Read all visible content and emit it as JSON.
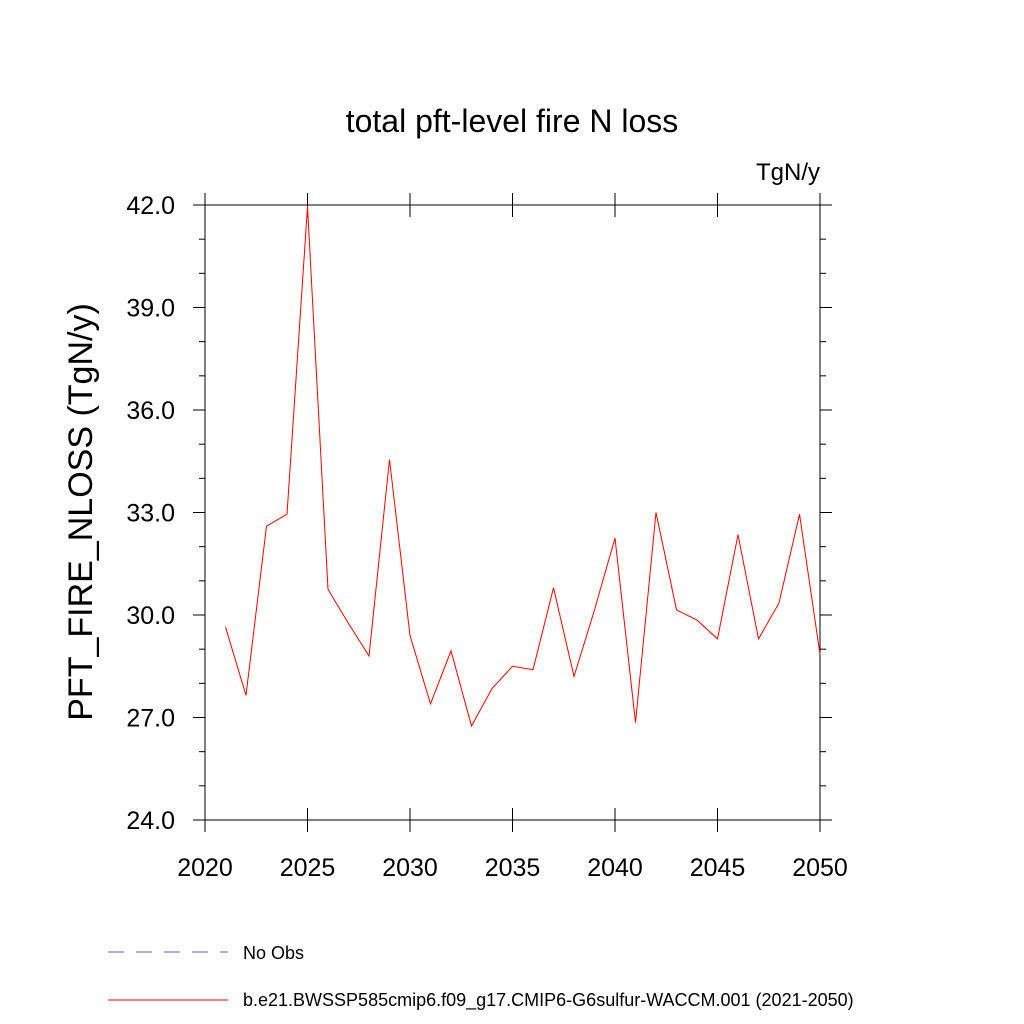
{
  "chart_data": {
    "type": "line",
    "title": "total pft-level fire N loss",
    "units_label": "TgN/y",
    "ylabel": "PFT_FIRE_NLOSS  (TgN/y)",
    "xlabel": "",
    "xlim": [
      2020,
      2050
    ],
    "ylim": [
      24.0,
      42.0
    ],
    "xticks": [
      2020,
      2025,
      2030,
      2035,
      2040,
      2045,
      2050
    ],
    "xtick_labels": [
      "2020",
      "2025",
      "2030",
      "2035",
      "2040",
      "2045",
      "2050"
    ],
    "yticks": [
      24.0,
      27.0,
      30.0,
      33.0,
      36.0,
      39.0,
      42.0
    ],
    "ytick_labels": [
      "24.0",
      "27.0",
      "30.0",
      "33.0",
      "36.0",
      "39.0",
      "42.0"
    ],
    "grid": false,
    "legend_position": "bottom",
    "series": [
      {
        "name": "b.e21.BWSSP585cmip6.f09_g17.CMIP6-G6sulfur-WACCM.001 (2021-2050)",
        "color": "#ff0000",
        "style": "solid",
        "x": [
          2021,
          2022,
          2023,
          2024,
          2025,
          2026,
          2027,
          2028,
          2029,
          2030,
          2031,
          2032,
          2033,
          2034,
          2035,
          2036,
          2037,
          2038,
          2039,
          2040,
          2041,
          2042,
          2043,
          2044,
          2045,
          2046,
          2047,
          2048,
          2049,
          2050
        ],
        "y": [
          29.65,
          27.65,
          32.6,
          32.95,
          41.95,
          30.75,
          29.75,
          28.8,
          34.55,
          29.4,
          27.4,
          28.95,
          26.75,
          27.85,
          28.5,
          28.4,
          30.8,
          28.2,
          30.15,
          32.25,
          26.85,
          33.0,
          30.15,
          29.85,
          29.3,
          32.35,
          29.3,
          30.35,
          32.95,
          28.85
        ]
      }
    ],
    "legend": [
      {
        "label": "No Obs",
        "color": "#6a5acd",
        "style": "dashed"
      },
      {
        "label": "b.e21.BWSSP585cmip6.f09_g17.CMIP6-G6sulfur-WACCM.001 (2021-2050)",
        "color": "#ff0000",
        "style": "solid"
      }
    ]
  }
}
